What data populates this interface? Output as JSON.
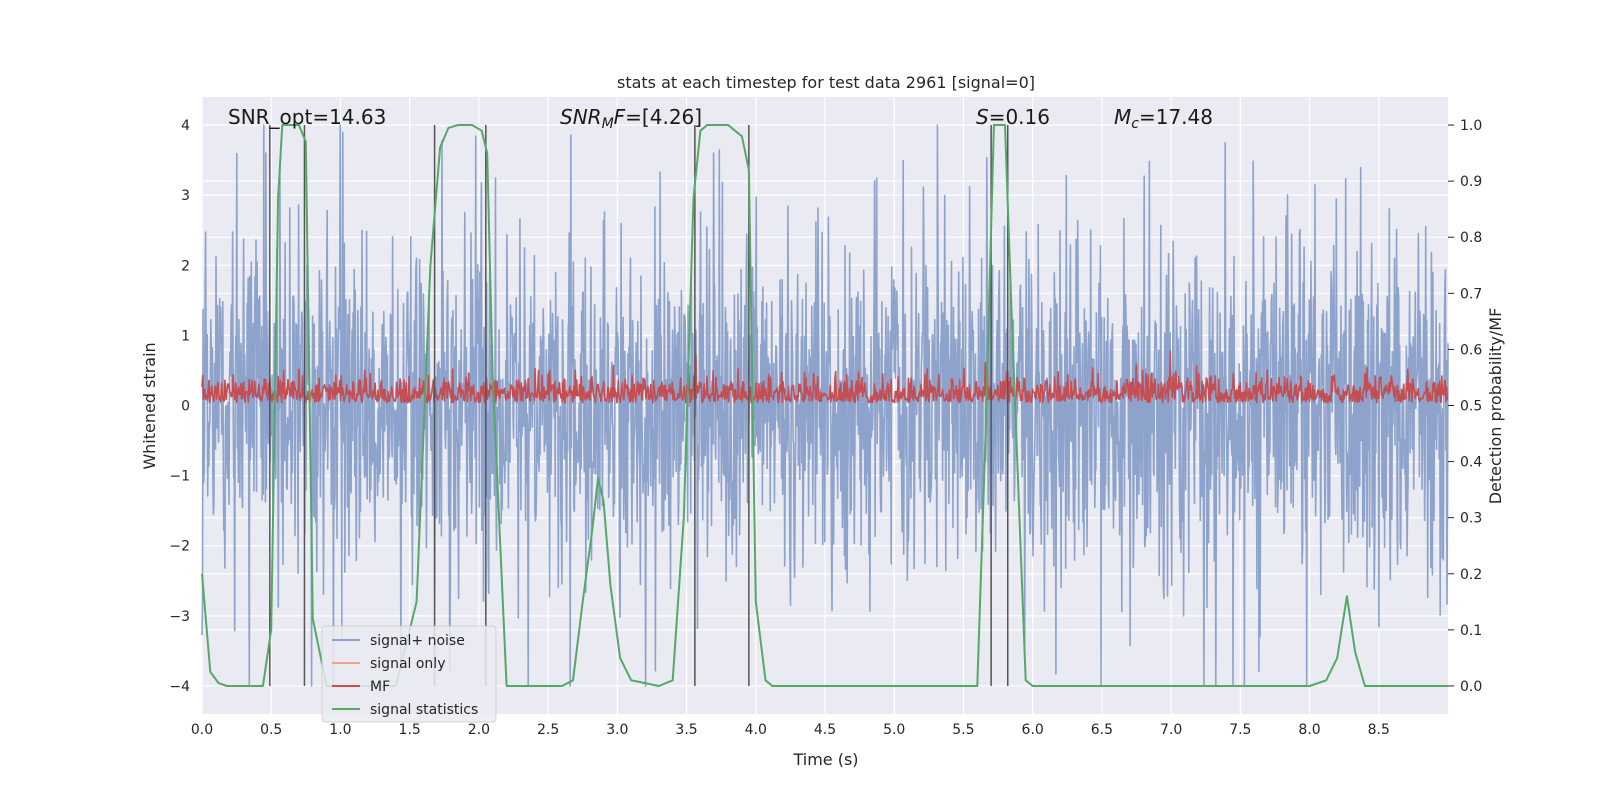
{
  "chart_data": {
    "type": "line",
    "title": "stats at each timestep for test data 2961 [signal=0]",
    "xlabel": "Time (s)",
    "ylabel_left": "Whitened strain",
    "ylabel_right": "Detection probability/MF",
    "xlim": [
      0.0,
      9.0
    ],
    "ylim_left": [
      -4.4,
      4.4
    ],
    "ylim_right": [
      -0.05,
      1.05
    ],
    "xticks": [
      "0.0",
      "0.5",
      "1.0",
      "1.5",
      "2.0",
      "2.5",
      "3.0",
      "3.5",
      "4.0",
      "4.5",
      "5.0",
      "5.5",
      "6.0",
      "6.5",
      "7.0",
      "7.5",
      "8.0",
      "8.5"
    ],
    "yticks_left": [
      "−4",
      "−3",
      "−2",
      "−1",
      "0",
      "1",
      "2",
      "3",
      "4"
    ],
    "yticks_right": [
      "0.0",
      "0.1",
      "0.2",
      "0.3",
      "0.4",
      "0.5",
      "0.6",
      "0.7",
      "0.8",
      "0.9",
      "1.0"
    ],
    "grid": true,
    "legend_placement": "lower-left",
    "colors": {
      "signal_noise": "#8ea3cc",
      "signal_only": "#e8a58a",
      "mf": "#c44e52",
      "stats": "#55a868",
      "background": "#eaeaf2",
      "vlines": "#555555"
    },
    "series": [
      {
        "name": "signal+ noise",
        "axis": "left",
        "description_range": [
          -4.0,
          4.0
        ],
        "typical_amplitude": 1.6
      },
      {
        "name": "signal only",
        "axis": "left",
        "values": []
      },
      {
        "name": "MF",
        "axis": "right",
        "typical_range": [
          0.5,
          0.6
        ]
      },
      {
        "name": "signal statistics",
        "axis": "right",
        "x": [
          0.0,
          0.06,
          0.12,
          0.18,
          0.3,
          0.44,
          0.5,
          0.55,
          0.58,
          0.62,
          0.7,
          0.75,
          0.8,
          0.9,
          1.0,
          1.2,
          1.4,
          1.55,
          1.65,
          1.72,
          1.78,
          1.85,
          1.95,
          2.02,
          2.06,
          2.1,
          2.2,
          2.4,
          2.6,
          2.68,
          2.75,
          2.82,
          2.86,
          2.9,
          2.95,
          3.02,
          3.1,
          3.3,
          3.4,
          3.48,
          3.55,
          3.6,
          3.65,
          3.7,
          3.8,
          3.9,
          3.95,
          4.0,
          4.07,
          4.12,
          4.2,
          4.5,
          5.0,
          5.5,
          5.6,
          5.66,
          5.72,
          5.76,
          5.8,
          5.85,
          5.95,
          6.0,
          6.5,
          7.0,
          7.5,
          8.0,
          8.12,
          8.2,
          8.27,
          8.33,
          8.4,
          8.6,
          9.0
        ],
        "values": [
          0.2,
          0.025,
          0.005,
          0.0,
          0.0,
          0.0,
          0.1,
          0.87,
          1.0,
          1.0,
          1.0,
          0.97,
          0.12,
          0.0,
          0.0,
          0.0,
          0.0,
          0.15,
          0.75,
          0.96,
          0.995,
          1.0,
          1.0,
          0.99,
          0.95,
          0.55,
          0.0,
          0.0,
          0.0,
          0.01,
          0.15,
          0.28,
          0.37,
          0.33,
          0.18,
          0.05,
          0.01,
          0.0,
          0.01,
          0.3,
          0.87,
          0.99,
          1.0,
          1.0,
          1.0,
          0.98,
          0.92,
          0.15,
          0.01,
          0.0,
          0.0,
          0.0,
          0.0,
          0.0,
          0.0,
          0.45,
          1.0,
          1.0,
          1.0,
          0.65,
          0.01,
          0.0,
          0.0,
          0.0,
          0.0,
          0.0,
          0.01,
          0.05,
          0.16,
          0.06,
          0.0,
          0.0,
          0.0
        ]
      }
    ],
    "vlines_x": [
      0.49,
      0.74,
      1.68,
      2.05,
      3.56,
      3.95,
      5.7,
      5.82
    ],
    "annotations": [
      {
        "id": "snr_opt",
        "text": "SNR_opt=14.63"
      },
      {
        "id": "snr_mf",
        "text": "SNRₘF=[4.26]"
      },
      {
        "id": "s",
        "text": "S=0.16"
      },
      {
        "id": "mc",
        "text": "M꜀=17.48"
      }
    ]
  }
}
